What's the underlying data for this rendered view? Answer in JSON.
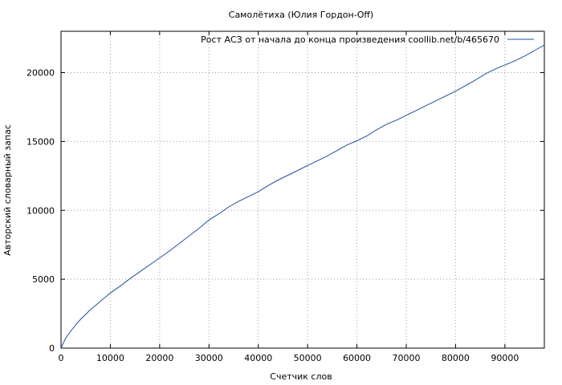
{
  "chart_data": {
    "type": "line",
    "title": "Самолётиха (Юлия Гордон-Off)",
    "xlabel": "Счетчик слов",
    "ylabel": "Авторский словарный запас",
    "xlim": [
      0,
      98000
    ],
    "ylim": [
      0,
      23000
    ],
    "x_ticks": [
      0,
      10000,
      20000,
      30000,
      40000,
      50000,
      60000,
      70000,
      80000,
      90000
    ],
    "y_ticks": [
      0,
      5000,
      10000,
      15000,
      20000
    ],
    "grid": true,
    "legend_position": "top-right",
    "series": [
      {
        "name": "Рост АСЗ от начала до конца произведения coollib.net/b/465670",
        "color": "#1f4e9c",
        "x": [
          0,
          500,
          1000,
          2000,
          3000,
          4000,
          5000,
          6000,
          8000,
          10000,
          12000,
          14000,
          16000,
          18000,
          20000,
          22000,
          24000,
          26000,
          28000,
          30000,
          32000,
          34000,
          36000,
          38000,
          40000,
          42000,
          44000,
          46000,
          48000,
          50000,
          52000,
          54000,
          56000,
          58000,
          60000,
          62000,
          64000,
          66000,
          68000,
          70000,
          72000,
          74000,
          76000,
          78000,
          80000,
          82000,
          84000,
          86000,
          88000,
          90000,
          92000,
          94000,
          96000,
          98000
        ],
        "y": [
          0,
          400,
          750,
          1250,
          1700,
          2100,
          2450,
          2800,
          3400,
          4000,
          4500,
          5050,
          5550,
          6050,
          6550,
          7050,
          7600,
          8150,
          8700,
          9300,
          9750,
          10250,
          10650,
          11000,
          11350,
          11800,
          12200,
          12550,
          12900,
          13250,
          13600,
          13950,
          14350,
          14750,
          15050,
          15400,
          15850,
          16250,
          16550,
          16900,
          17250,
          17600,
          17950,
          18300,
          18650,
          19050,
          19450,
          19900,
          20250,
          20550,
          20850,
          21200,
          21600,
          22000
        ]
      }
    ]
  }
}
